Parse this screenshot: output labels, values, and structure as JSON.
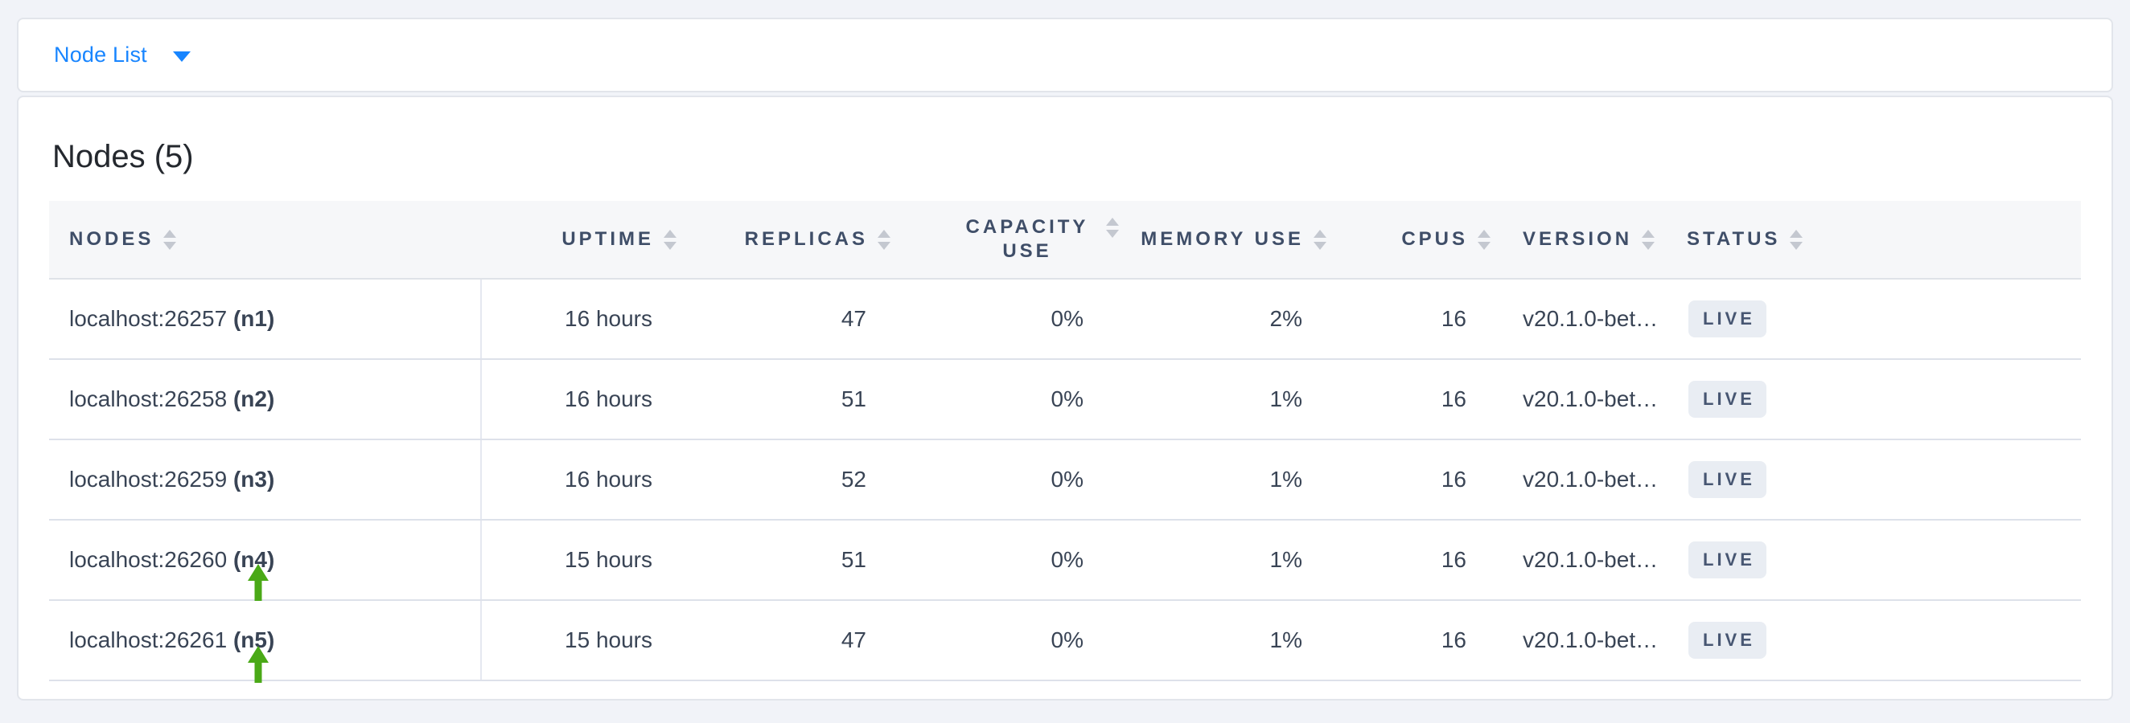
{
  "toolbar": {
    "dropdown_label": "Node List",
    "accent_color": "#1885ff"
  },
  "panel": {
    "title": "Nodes (5)"
  },
  "table": {
    "columns": [
      {
        "key": "nodes",
        "label": "NODES",
        "sortable": true
      },
      {
        "key": "uptime",
        "label": "UPTIME",
        "sortable": true
      },
      {
        "key": "replicas",
        "label": "REPLICAS",
        "sortable": true
      },
      {
        "key": "capacity_use",
        "label": "CAPACITY USE",
        "sortable": true
      },
      {
        "key": "memory_use",
        "label": "MEMORY USE",
        "sortable": true
      },
      {
        "key": "cpus",
        "label": "CPUS",
        "sortable": true
      },
      {
        "key": "version",
        "label": "VERSION",
        "sortable": true
      },
      {
        "key": "status",
        "label": "STATUS",
        "sortable": true
      }
    ],
    "rows": [
      {
        "address": "localhost:26257",
        "id": "(n1)",
        "uptime": "16 hours",
        "replicas": "47",
        "capacity_use": "0%",
        "memory_use": "2%",
        "cpus": "16",
        "version": "v20.1.0-bet…",
        "status": "LIVE",
        "annotated": false
      },
      {
        "address": "localhost:26258",
        "id": "(n2)",
        "uptime": "16 hours",
        "replicas": "51",
        "capacity_use": "0%",
        "memory_use": "1%",
        "cpus": "16",
        "version": "v20.1.0-bet…",
        "status": "LIVE",
        "annotated": false
      },
      {
        "address": "localhost:26259",
        "id": "(n3)",
        "uptime": "16 hours",
        "replicas": "52",
        "capacity_use": "0%",
        "memory_use": "1%",
        "cpus": "16",
        "version": "v20.1.0-bet…",
        "status": "LIVE",
        "annotated": false
      },
      {
        "address": "localhost:26260",
        "id": "(n4)",
        "uptime": "15 hours",
        "replicas": "51",
        "capacity_use": "0%",
        "memory_use": "1%",
        "cpus": "16",
        "version": "v20.1.0-bet…",
        "status": "LIVE",
        "annotated": true
      },
      {
        "address": "localhost:26261",
        "id": "(n5)",
        "uptime": "15 hours",
        "replicas": "47",
        "capacity_use": "0%",
        "memory_use": "1%",
        "cpus": "16",
        "version": "v20.1.0-bet…",
        "status": "LIVE",
        "annotated": true
      }
    ],
    "status_badge": {
      "background": "#e9edf3",
      "text_color": "#475672"
    }
  },
  "annotations": {
    "arrow_color": "#4aa917",
    "targets": [
      "(n4)",
      "(n5)"
    ]
  }
}
